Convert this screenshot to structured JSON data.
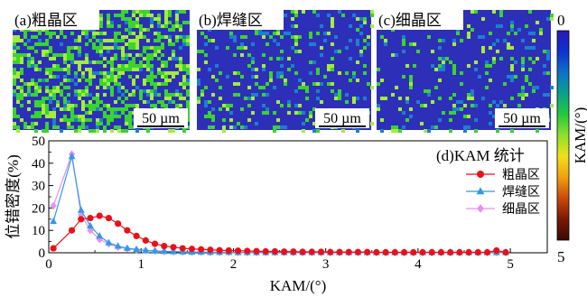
{
  "colors": {
    "coarse": "#e8111a",
    "weld": "#2f9be8",
    "fine": "#e98ff0",
    "map_background": "#2e2fb8",
    "map_green": "#3ad42e"
  },
  "panels": [
    {
      "label": "(a)粗晶区",
      "scale_text": "50 µm",
      "green_density": 0.46
    },
    {
      "label": "(b)焊缝区",
      "scale_text": "50 µm",
      "green_density": 0.12
    },
    {
      "label": "(c)细晶区",
      "scale_text": "50 µm",
      "green_density": 0.1
    }
  ],
  "colorbar": {
    "label": "KAM/(°)",
    "min_label": "0",
    "max_label": "5",
    "colors": [
      "#2a1ab0",
      "#1030d0",
      "#0d72c8",
      "#0aa08a",
      "#26c840",
      "#8ee02a",
      "#f0e018",
      "#f0a010",
      "#c84a0a",
      "#7a1806",
      "#3a0a02"
    ]
  },
  "chart_data": {
    "type": "line",
    "title": "",
    "xlabel": "KAM/(°)",
    "ylabel": "位错密度(%)",
    "xlim": [
      0,
      5.4
    ],
    "ylim": [
      0,
      50
    ],
    "xticks": [
      0,
      1,
      2,
      3,
      4,
      5
    ],
    "yticks": [
      0,
      10,
      20,
      30,
      40,
      50
    ],
    "legend_title": "(d)KAM 统计",
    "legend_position": "top-right",
    "grid": false,
    "series": [
      {
        "name": "粗晶区",
        "color_key": "coarse",
        "marker": "circle",
        "x": [
          0.05,
          0.25,
          0.35,
          0.45,
          0.55,
          0.65,
          0.75,
          0.85,
          0.95,
          1.05,
          1.15,
          1.25,
          1.35,
          1.45,
          1.55,
          1.65,
          1.75,
          1.85,
          1.95,
          2.05,
          2.15,
          2.25,
          2.35,
          2.45,
          2.55,
          2.65,
          2.75,
          2.85,
          2.95,
          3.05,
          3.15,
          3.25,
          3.35,
          3.45,
          3.55,
          3.65,
          3.75,
          3.85,
          3.95,
          4.05,
          4.15,
          4.25,
          4.35,
          4.45,
          4.55,
          4.65,
          4.75,
          4.85,
          4.95
        ],
        "y": [
          2,
          10,
          15,
          15.5,
          16.5,
          15.5,
          13,
          10,
          7.5,
          5.5,
          4,
          3,
          2.5,
          2,
          1.7,
          1.5,
          1.3,
          1.1,
          1,
          0.9,
          0.8,
          0.7,
          0.6,
          0.6,
          0.5,
          0.5,
          0.4,
          0.4,
          0.4,
          0.3,
          0.3,
          0.3,
          0.3,
          0.3,
          0.2,
          0.2,
          0.2,
          0.2,
          0.2,
          0.2,
          0.2,
          0.2,
          0.2,
          0.2,
          0.2,
          0.2,
          0.2,
          1,
          0.2
        ]
      },
      {
        "name": "焊缝区",
        "color_key": "weld",
        "marker": "triangle",
        "x": [
          0.05,
          0.25,
          0.35,
          0.45,
          0.55,
          0.65,
          0.75,
          0.85,
          0.95,
          1.05,
          1.15,
          1.25,
          1.35,
          1.45,
          1.55,
          1.65,
          1.75,
          1.85,
          1.95,
          2.05,
          2.15,
          2.25,
          2.35,
          2.45,
          2.55,
          2.65,
          2.75,
          2.85,
          2.95,
          3.05,
          3.15,
          3.25,
          3.35,
          3.45,
          3.55,
          3.65,
          3.75,
          3.85,
          3.95,
          4.05,
          4.15,
          4.25,
          4.35,
          4.45,
          4.55,
          4.65,
          4.75,
          4.85,
          4.95
        ],
        "y": [
          14,
          43,
          19,
          12,
          7.5,
          4.5,
          3,
          2,
          1.5,
          1,
          0.8,
          0.6,
          0.5,
          0.4,
          0.3,
          0.3,
          0.2,
          0.2,
          0.2,
          0.1,
          0.1,
          0.1,
          0.1,
          0.1,
          0.1,
          0.1,
          0.1,
          0.1,
          0.1,
          0.1,
          0.1,
          0.1,
          0.1,
          0.1,
          0.1,
          0.1,
          0.1,
          0.1,
          0.1,
          0.1,
          0.1,
          0.1,
          0.1,
          0.1,
          0.1,
          0.1,
          0.1,
          0.1,
          0.1
        ]
      },
      {
        "name": "细晶区",
        "color_key": "fine",
        "marker": "diamond",
        "x": [
          0.05,
          0.25,
          0.35,
          0.45,
          0.55,
          0.65,
          0.75,
          0.85,
          0.95,
          1.05,
          1.15,
          1.25,
          1.35,
          1.45,
          1.55,
          1.65,
          1.75,
          1.85,
          1.95,
          2.05,
          2.15,
          2.25,
          2.35,
          2.45,
          2.55,
          2.65,
          2.75,
          2.85,
          2.95,
          3.05,
          3.15,
          3.25,
          3.35,
          3.45,
          3.55,
          3.65,
          3.75,
          3.85,
          3.95,
          4.05,
          4.15,
          4.25,
          4.35,
          4.45,
          4.55,
          4.65,
          4.75,
          4.85,
          4.95
        ],
        "y": [
          21,
          44,
          17,
          10,
          6,
          4,
          2.5,
          1.8,
          1.3,
          1,
          0.8,
          0.6,
          0.5,
          0.4,
          0.3,
          0.3,
          0.2,
          0.2,
          0.2,
          0.1,
          0.1,
          0.1,
          0.1,
          0.1,
          0.1,
          0.1,
          0.1,
          0.1,
          0.1,
          0.1,
          0.1,
          0.1,
          0.1,
          0.1,
          0.1,
          0.1,
          0.1,
          0.1,
          0.1,
          0.1,
          0.1,
          0.1,
          0.1,
          0.1,
          0.1,
          0.1,
          0.1,
          0.1,
          0.1
        ]
      }
    ]
  }
}
